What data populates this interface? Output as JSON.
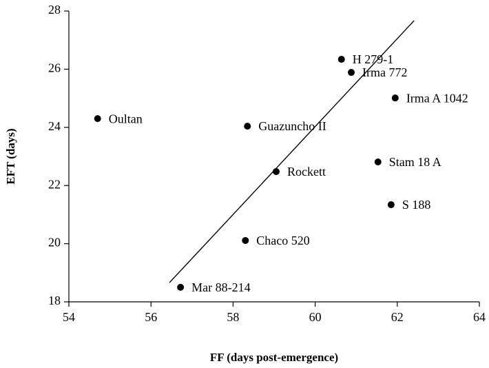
{
  "chart_data": {
    "type": "scatter",
    "xlabel": "FF (days post-emergence)",
    "ylabel": "EFT (days)",
    "x": [
      54.7,
      60.64,
      60.88,
      61.95,
      58.35,
      61.53,
      59.05,
      61.85,
      58.3,
      56.72
    ],
    "y": [
      24.3,
      26.34,
      25.89,
      25.01,
      24.04,
      22.81,
      22.48,
      21.34,
      20.11,
      18.5
    ],
    "labels": [
      "Oultan",
      "H 279-1",
      "Irma 772",
      "Irma A 1042",
      "Guazuncho II",
      "Stam 18 A",
      "Rockett",
      "S 188",
      "Chaco 520",
      "Mar 88-214"
    ],
    "color": "#000000",
    "trendline": {
      "x": [
        56.45,
        62.41
      ],
      "y": [
        18.66,
        27.67
      ]
    },
    "xlim": [
      54,
      64
    ],
    "ylim": [
      18,
      28
    ],
    "xticks": [
      54,
      56,
      58,
      60,
      62,
      64
    ],
    "yticks": [
      18,
      20,
      22,
      24,
      26,
      28
    ],
    "grid": false
  }
}
